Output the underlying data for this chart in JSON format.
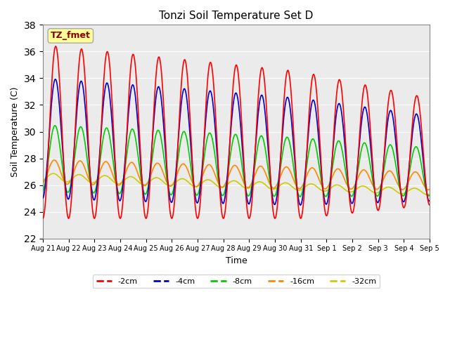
{
  "title": "Tonzi Soil Temperature Set D",
  "xlabel": "Time",
  "ylabel": "Soil Temperature (C)",
  "ylim": [
    22,
    38
  ],
  "yticks": [
    22,
    24,
    26,
    28,
    30,
    32,
    34,
    36,
    38
  ],
  "annotation": "TZ_fmet",
  "annotation_color": "#8B0000",
  "annotation_bg": "#FFFF99",
  "background_color": "#EBEBEB",
  "line_colors": {
    "-2cm": "#FF0000",
    "-4cm": "#0000CC",
    "-8cm": "#00CC00",
    "-16cm": "#FF8800",
    "-32cm": "#CCCC00"
  },
  "x_tick_labels": [
    "Aug 21",
    "Aug 22",
    "Aug 23",
    "Aug 24",
    "Aug 25",
    "Aug 26",
    "Aug 27",
    "Aug 28",
    "Aug 29",
    "Aug 30",
    "Aug 31",
    "Sep 1",
    "Sep 2",
    "Sep 3",
    "Sep 4",
    "Sep 5"
  ],
  "n_days": 15,
  "points_per_day": 48
}
